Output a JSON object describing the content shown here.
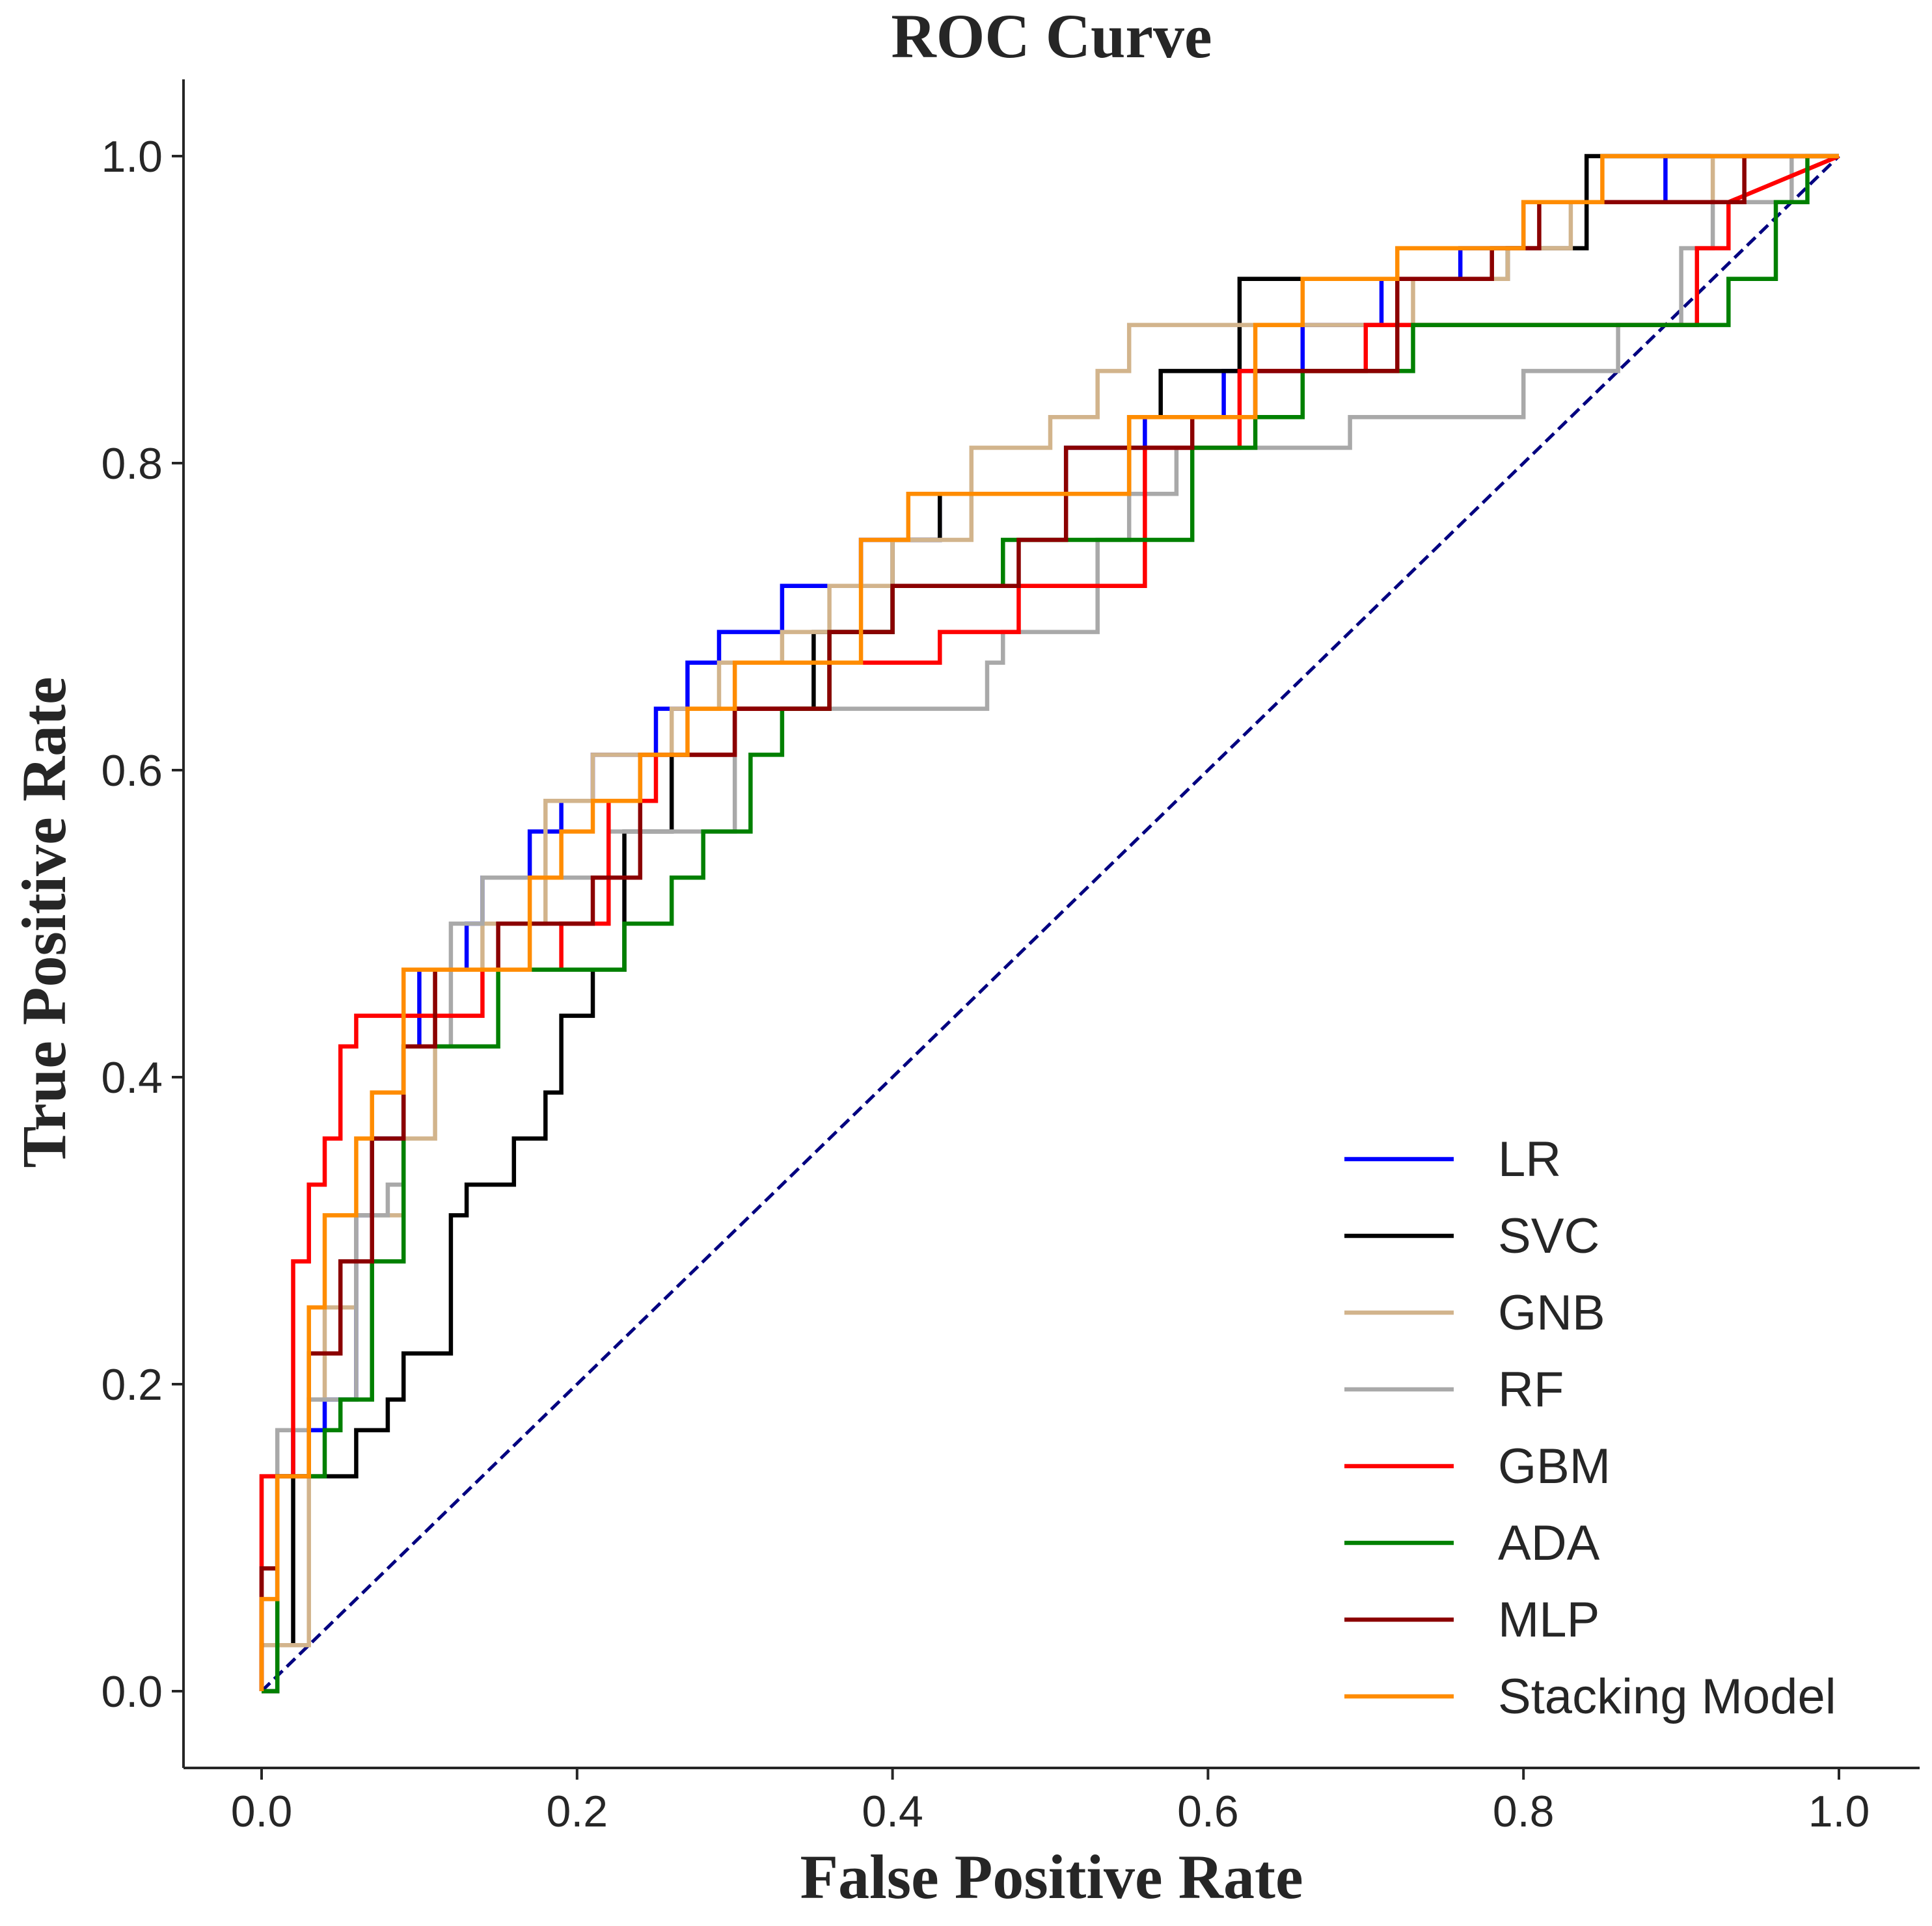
{
  "chart_data": {
    "type": "line",
    "title": "ROC Curve",
    "xlabel": "False Positive Rate",
    "ylabel": "True Positive Rate",
    "xlim": [
      -0.05,
      1.05
    ],
    "ylim": [
      -0.05,
      1.05
    ],
    "x_ticks": [
      "0.0",
      "0.2",
      "0.4",
      "0.6",
      "0.8",
      "1.0"
    ],
    "y_ticks": [
      "0.0",
      "0.2",
      "0.4",
      "0.6",
      "0.8",
      "1.0"
    ],
    "grid": false,
    "legend_position": "lower-right",
    "reference_line": {
      "x": [
        0,
        1
      ],
      "y": [
        0,
        1
      ],
      "color": "#000080",
      "style": "dashed"
    },
    "series": [
      {
        "name": "LR",
        "color": "#0000ff",
        "x": [
          0,
          0,
          0.01,
          0.01,
          0.02,
          0.02,
          0.04,
          0.04,
          0.06,
          0.06,
          0.07,
          0.07,
          0.09,
          0.09,
          0.1,
          0.1,
          0.13,
          0.13,
          0.14,
          0.14,
          0.17,
          0.17,
          0.19,
          0.19,
          0.21,
          0.21,
          0.25,
          0.25,
          0.27,
          0.27,
          0.29,
          0.29,
          0.33,
          0.33,
          0.38,
          0.38,
          0.43,
          0.43,
          0.51,
          0.51,
          0.56,
          0.56,
          0.61,
          0.61,
          0.66,
          0.66,
          0.71,
          0.71,
          0.76,
          0.76,
          0.8,
          0.8,
          0.89,
          0.89,
          1
        ],
        "y": [
          0,
          0.03,
          0.03,
          0.14,
          0.14,
          0.17,
          0.17,
          0.19,
          0.19,
          0.31,
          0.31,
          0.36,
          0.36,
          0.42,
          0.42,
          0.47,
          0.47,
          0.5,
          0.5,
          0.53,
          0.53,
          0.56,
          0.56,
          0.58,
          0.58,
          0.61,
          0.61,
          0.64,
          0.64,
          0.67,
          0.67,
          0.69,
          0.69,
          0.72,
          0.72,
          0.75,
          0.75,
          0.78,
          0.78,
          0.81,
          0.81,
          0.83,
          0.83,
          0.86,
          0.86,
          0.89,
          0.89,
          0.92,
          0.92,
          0.94,
          0.94,
          0.97,
          0.97,
          1.0,
          1.0
        ]
      },
      {
        "name": "SVC",
        "color": "#000000",
        "x": [
          0,
          0.01,
          0.01,
          0.02,
          0.02,
          0.06,
          0.06,
          0.08,
          0.08,
          0.09,
          0.09,
          0.12,
          0.12,
          0.13,
          0.13,
          0.16,
          0.16,
          0.18,
          0.18,
          0.19,
          0.19,
          0.21,
          0.21,
          0.23,
          0.23,
          0.26,
          0.26,
          0.3,
          0.3,
          0.35,
          0.35,
          0.4,
          0.4,
          0.43,
          0.43,
          0.55,
          0.55,
          0.57,
          0.57,
          0.62,
          0.62,
          0.79,
          0.79,
          0.84,
          0.84,
          0.89,
          0.89,
          1
        ],
        "y": [
          0,
          0,
          0.03,
          0.03,
          0.14,
          0.14,
          0.17,
          0.17,
          0.19,
          0.19,
          0.22,
          0.22,
          0.31,
          0.31,
          0.33,
          0.33,
          0.36,
          0.36,
          0.39,
          0.39,
          0.44,
          0.44,
          0.47,
          0.47,
          0.56,
          0.56,
          0.61,
          0.61,
          0.64,
          0.64,
          0.69,
          0.69,
          0.75,
          0.75,
          0.78,
          0.78,
          0.83,
          0.83,
          0.86,
          0.86,
          0.92,
          0.92,
          0.94,
          0.94,
          1.0,
          1.0,
          1.0,
          1.0
        ]
      },
      {
        "name": "GNB",
        "color": "#d2b48c",
        "x": [
          0,
          0,
          0.03,
          0.03,
          0.04,
          0.04,
          0.06,
          0.06,
          0.09,
          0.09,
          0.11,
          0.11,
          0.14,
          0.14,
          0.18,
          0.18,
          0.21,
          0.21,
          0.26,
          0.26,
          0.29,
          0.29,
          0.33,
          0.33,
          0.36,
          0.36,
          0.4,
          0.4,
          0.45,
          0.45,
          0.5,
          0.5,
          0.53,
          0.53,
          0.55,
          0.55,
          0.73,
          0.73,
          0.79,
          0.79,
          0.83,
          0.83,
          0.92,
          0.92,
          1
        ],
        "y": [
          0,
          0.03,
          0.03,
          0.19,
          0.19,
          0.25,
          0.25,
          0.31,
          0.31,
          0.36,
          0.36,
          0.47,
          0.47,
          0.5,
          0.5,
          0.58,
          0.58,
          0.61,
          0.61,
          0.64,
          0.64,
          0.67,
          0.67,
          0.69,
          0.69,
          0.72,
          0.72,
          0.75,
          0.75,
          0.81,
          0.81,
          0.83,
          0.83,
          0.86,
          0.86,
          0.89,
          0.89,
          0.92,
          0.92,
          0.94,
          0.94,
          0.97,
          0.97,
          1.0,
          1.0
        ]
      },
      {
        "name": "RF",
        "color": "#a9a9a9",
        "x": [
          0,
          0,
          0.01,
          0.01,
          0.03,
          0.03,
          0.06,
          0.06,
          0.08,
          0.08,
          0.09,
          0.09,
          0.12,
          0.12,
          0.14,
          0.14,
          0.22,
          0.22,
          0.3,
          0.3,
          0.46,
          0.46,
          0.47,
          0.47,
          0.53,
          0.53,
          0.55,
          0.55,
          0.58,
          0.58,
          0.69,
          0.69,
          0.8,
          0.8,
          0.86,
          0.86,
          0.9,
          0.9,
          0.92,
          0.92,
          0.97,
          0.97,
          1
        ],
        "y": [
          0,
          0.14,
          0.14,
          0.17,
          0.17,
          0.19,
          0.19,
          0.31,
          0.31,
          0.33,
          0.33,
          0.42,
          0.42,
          0.5,
          0.5,
          0.53,
          0.53,
          0.56,
          0.56,
          0.64,
          0.64,
          0.67,
          0.67,
          0.69,
          0.69,
          0.75,
          0.75,
          0.78,
          0.78,
          0.81,
          0.81,
          0.83,
          0.83,
          0.86,
          0.86,
          0.89,
          0.89,
          0.94,
          0.94,
          0.97,
          0.97,
          1.0,
          1.0
        ]
      },
      {
        "name": "GBM",
        "color": "#ff0000",
        "x": [
          0,
          0,
          0.02,
          0.02,
          0.03,
          0.03,
          0.04,
          0.04,
          0.05,
          0.05,
          0.06,
          0.06,
          0.1,
          0.1,
          0.14,
          0.14,
          0.19,
          0.19,
          0.22,
          0.22,
          0.25,
          0.25,
          0.3,
          0.3,
          0.36,
          0.36,
          0.43,
          0.43,
          0.48,
          0.48,
          0.56,
          0.56,
          0.62,
          0.62,
          0.7,
          0.7,
          0.83,
          0.83,
          0.91,
          0.91,
          0.93,
          0.93,
          1
        ],
        "y": [
          0,
          0.14,
          0.14,
          0.28,
          0.28,
          0.33,
          0.33,
          0.36,
          0.36,
          0.42,
          0.42,
          0.44,
          0.44,
          0.44,
          0.44,
          0.47,
          0.47,
          0.5,
          0.5,
          0.58,
          0.58,
          0.61,
          0.61,
          0.64,
          0.64,
          0.67,
          0.67,
          0.69,
          0.69,
          0.72,
          0.72,
          0.81,
          0.81,
          0.86,
          0.86,
          0.89,
          0.89,
          0.89,
          0.89,
          0.94,
          0.94,
          0.97,
          1.0
        ]
      },
      {
        "name": "ADA",
        "color": "#008000",
        "x": [
          0,
          0.01,
          0.01,
          0.04,
          0.04,
          0.05,
          0.05,
          0.07,
          0.07,
          0.09,
          0.09,
          0.15,
          0.15,
          0.23,
          0.23,
          0.26,
          0.26,
          0.28,
          0.28,
          0.31,
          0.31,
          0.33,
          0.33,
          0.36,
          0.36,
          0.4,
          0.4,
          0.47,
          0.47,
          0.59,
          0.59,
          0.63,
          0.63,
          0.66,
          0.66,
          0.73,
          0.73,
          0.93,
          0.93,
          0.96,
          0.96,
          0.98,
          0.98,
          1
        ],
        "y": [
          0,
          0,
          0.14,
          0.14,
          0.17,
          0.17,
          0.19,
          0.19,
          0.28,
          0.28,
          0.42,
          0.42,
          0.47,
          0.47,
          0.5,
          0.5,
          0.53,
          0.53,
          0.56,
          0.56,
          0.61,
          0.61,
          0.64,
          0.64,
          0.69,
          0.69,
          0.72,
          0.72,
          0.75,
          0.75,
          0.81,
          0.81,
          0.83,
          0.83,
          0.86,
          0.86,
          0.89,
          0.89,
          0.92,
          0.92,
          0.97,
          0.97,
          1.0,
          1.0
        ]
      },
      {
        "name": "MLP",
        "color": "#8b0000",
        "x": [
          0,
          0,
          0.01,
          0.01,
          0.03,
          0.03,
          0.05,
          0.05,
          0.07,
          0.07,
          0.09,
          0.09,
          0.11,
          0.11,
          0.15,
          0.15,
          0.21,
          0.21,
          0.24,
          0.24,
          0.3,
          0.3,
          0.36,
          0.36,
          0.4,
          0.4,
          0.48,
          0.48,
          0.51,
          0.51,
          0.59,
          0.59,
          0.63,
          0.63,
          0.72,
          0.72,
          0.78,
          0.78,
          0.81,
          0.81,
          0.94,
          0.94,
          1
        ],
        "y": [
          0,
          0.08,
          0.08,
          0.14,
          0.14,
          0.22,
          0.22,
          0.28,
          0.28,
          0.36,
          0.36,
          0.42,
          0.42,
          0.47,
          0.47,
          0.5,
          0.5,
          0.53,
          0.53,
          0.61,
          0.61,
          0.64,
          0.64,
          0.69,
          0.69,
          0.72,
          0.72,
          0.75,
          0.75,
          0.81,
          0.81,
          0.83,
          0.83,
          0.86,
          0.86,
          0.92,
          0.92,
          0.94,
          0.94,
          0.97,
          0.97,
          1.0,
          1.0
        ]
      },
      {
        "name": "Stacking Model",
        "color": "#ff8c00",
        "x": [
          0,
          0,
          0.01,
          0.01,
          0.03,
          0.03,
          0.04,
          0.04,
          0.06,
          0.06,
          0.07,
          0.07,
          0.09,
          0.09,
          0.17,
          0.17,
          0.19,
          0.19,
          0.21,
          0.21,
          0.24,
          0.24,
          0.27,
          0.27,
          0.3,
          0.3,
          0.38,
          0.38,
          0.41,
          0.41,
          0.55,
          0.55,
          0.63,
          0.63,
          0.66,
          0.66,
          0.72,
          0.72,
          0.8,
          0.8,
          0.85,
          0.85,
          1
        ],
        "y": [
          0,
          0.06,
          0.06,
          0.14,
          0.14,
          0.25,
          0.25,
          0.31,
          0.31,
          0.36,
          0.36,
          0.39,
          0.39,
          0.47,
          0.47,
          0.53,
          0.53,
          0.56,
          0.56,
          0.58,
          0.58,
          0.61,
          0.61,
          0.64,
          0.64,
          0.67,
          0.67,
          0.75,
          0.75,
          0.78,
          0.78,
          0.83,
          0.83,
          0.89,
          0.89,
          0.92,
          0.92,
          0.94,
          0.94,
          0.97,
          0.97,
          1.0,
          1.0
        ]
      }
    ]
  }
}
